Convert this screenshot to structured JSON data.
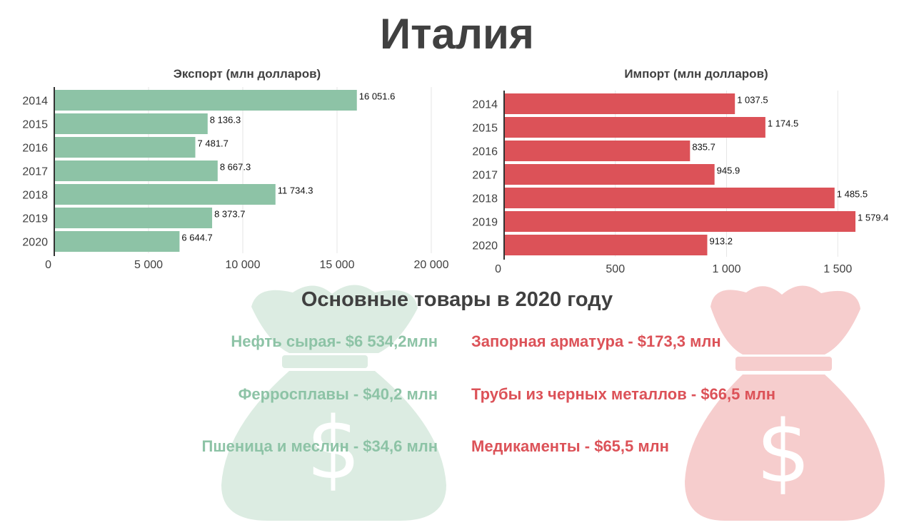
{
  "page": {
    "title": "Италия",
    "subtitle": "Основные товары в 2020 году"
  },
  "colors": {
    "export": "#8dc3a6",
    "import": "#dc5258",
    "export_bag": "#dcece2",
    "import_bag": "#f6cdcd",
    "text": "#404040"
  },
  "icons": {
    "left_background": "money-bag-icon",
    "right_background": "money-bag-icon"
  },
  "chart_data": [
    {
      "type": "bar",
      "orientation": "horizontal",
      "title": "Экспорт (млн долларов)",
      "categories": [
        "2014",
        "2015",
        "2016",
        "2017",
        "2018",
        "2019",
        "2020"
      ],
      "values": [
        16051.6,
        8136.3,
        7481.7,
        8667.3,
        11734.3,
        8373.7,
        6644.7
      ],
      "value_labels": [
        "16 051.6",
        "8 136.3",
        "7 481.7",
        "8 667.3",
        "11 734.3",
        "8 373.7",
        "6 644.7"
      ],
      "xlim": [
        0,
        20000
      ],
      "xticks": [
        0,
        5000,
        10000,
        15000,
        20000
      ],
      "xtick_labels": [
        "0",
        "5 000",
        "10 000",
        "15 000",
        "20 000"
      ],
      "grid": true
    },
    {
      "type": "bar",
      "orientation": "horizontal",
      "title": "Импорт (млн долларов)",
      "categories": [
        "2014",
        "2015",
        "2016",
        "2017",
        "2018",
        "2019",
        "2020"
      ],
      "values": [
        1037.5,
        1174.5,
        835.7,
        945.9,
        1485.5,
        1579.4,
        913.2
      ],
      "value_labels": [
        "1 037.5",
        "1 174.5",
        "835.7",
        "945.9",
        "1 485.5",
        "1 579.4",
        "913.2"
      ],
      "xlim": [
        0,
        1650
      ],
      "xticks": [
        0,
        500,
        1000,
        1500
      ],
      "xtick_labels": [
        "0",
        "500",
        "1 000",
        "1 500"
      ],
      "grid": true
    }
  ],
  "goods": {
    "export": [
      "Нефть сырая- $6 534,2млн",
      "Ферросплавы - $40,2 млн",
      "Пшеница и меслин - $34,6 млн"
    ],
    "import": [
      "Запорная арматура - $173,3 млн",
      "Трубы из черных металлов  - $66,5 млн",
      "Медикаменты  - $65,5 млн"
    ]
  }
}
